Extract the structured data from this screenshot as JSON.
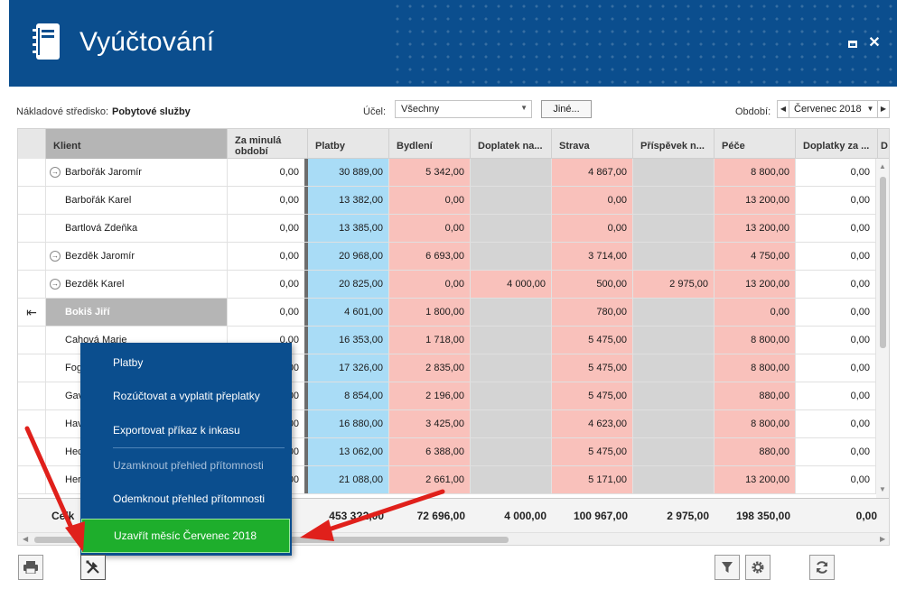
{
  "app": {
    "title": "Vyúčtování"
  },
  "filters": {
    "cost_center_label": "Nákladové středisko:",
    "cost_center_value": "Pobytové služby",
    "purpose_label": "Účel:",
    "purpose_value": "Všechny",
    "other_button": "Jiné...",
    "period_label": "Období:",
    "period_value": "Červenec 2018"
  },
  "grid": {
    "columns": [
      "Klient",
      "Za minulá období",
      "Platby",
      "Bydlení",
      "Doplatek na...",
      "Strava",
      "Příspěvek n...",
      "Péče",
      "Doplatky za ...",
      "D"
    ],
    "rows": [
      {
        "name": "Barbořák Jaromír",
        "arrow": true,
        "active": false,
        "values": [
          "0,00",
          "30 889,00",
          "5 342,00",
          "",
          "4 867,00",
          "",
          "8 800,00",
          "0,00"
        ]
      },
      {
        "name": "Barbořák Karel",
        "arrow": false,
        "active": false,
        "values": [
          "0,00",
          "13 382,00",
          "0,00",
          "",
          "0,00",
          "",
          "13 200,00",
          "0,00"
        ]
      },
      {
        "name": "Bartlová Zdeňka",
        "arrow": false,
        "active": false,
        "values": [
          "0,00",
          "13 385,00",
          "0,00",
          "",
          "0,00",
          "",
          "13 200,00",
          "0,00"
        ]
      },
      {
        "name": "Bezděk Jaromír",
        "arrow": true,
        "active": false,
        "values": [
          "0,00",
          "20 968,00",
          "6 693,00",
          "",
          "3 714,00",
          "",
          "4 750,00",
          "0,00"
        ]
      },
      {
        "name": "Bezděk Karel",
        "arrow": true,
        "active": false,
        "values": [
          "0,00",
          "20 825,00",
          "0,00",
          "4 000,00",
          "500,00",
          "2 975,00",
          "13 200,00",
          "0,00"
        ]
      },
      {
        "name": "Bokiš Jiří",
        "arrow": false,
        "active": true,
        "values": [
          "0,00",
          "4 601,00",
          "1 800,00",
          "",
          "780,00",
          "",
          "0,00",
          "0,00"
        ]
      },
      {
        "name": "Cahová Marie",
        "arrow": false,
        "active": false,
        "values": [
          "0,00",
          "16 353,00",
          "1 718,00",
          "",
          "5 475,00",
          "",
          "8 800,00",
          "0,00"
        ]
      },
      {
        "name": "Fog",
        "arrow": false,
        "active": false,
        "values": [
          "0,00",
          "17 326,00",
          "2 835,00",
          "",
          "5 475,00",
          "",
          "8 800,00",
          "0,00"
        ]
      },
      {
        "name": "Gav",
        "arrow": false,
        "active": false,
        "values": [
          "0,00",
          "8 854,00",
          "2 196,00",
          "",
          "5 475,00",
          "",
          "880,00",
          "0,00"
        ]
      },
      {
        "name": "Hav",
        "arrow": false,
        "active": false,
        "values": [
          "0,00",
          "16 880,00",
          "3 425,00",
          "",
          "4 623,00",
          "",
          "8 800,00",
          "0,00"
        ]
      },
      {
        "name": "Hec",
        "arrow": false,
        "active": false,
        "values": [
          "0,00",
          "13 062,00",
          "6 388,00",
          "",
          "5 475,00",
          "",
          "880,00",
          "0,00"
        ]
      },
      {
        "name": "Her",
        "arrow": false,
        "active": false,
        "values": [
          "0,00",
          "21 088,00",
          "2 661,00",
          "",
          "5 171,00",
          "",
          "13 200,00",
          "0,00"
        ]
      }
    ],
    "footer": {
      "label": "Celk",
      "values": [
        "",
        "453 3?2,00",
        "72 696,00",
        "4 000,00",
        "100 967,00",
        "2 975,00",
        "198 350,00",
        "0,00"
      ]
    }
  },
  "menu": {
    "items": [
      {
        "label": "Platby",
        "disabled": false
      },
      {
        "label": "Rozúčtovat a vyplatit přeplatky",
        "disabled": false
      },
      {
        "label": "Exportovat příkaz k inkasu",
        "disabled": false
      },
      {
        "label": "Uzamknout přehled přítomnosti",
        "disabled": true
      },
      {
        "label": "Odemknout přehled přítomnosti",
        "disabled": false
      },
      {
        "label": "Uzavřít měsíc Červenec 2018",
        "disabled": false,
        "highlight": true
      }
    ]
  },
  "colors": {
    "header": "#0b4e8e",
    "platby": "#a9dcf6",
    "pink": "#f9c1bb",
    "grey": "#d4d4d4",
    "highlight": "#1eae2c",
    "arrow": "#e0201b"
  },
  "toolbar": {
    "icons": [
      "print-icon",
      "tools-icon",
      "filter-icon",
      "gear-icon",
      "refresh-icon"
    ]
  }
}
